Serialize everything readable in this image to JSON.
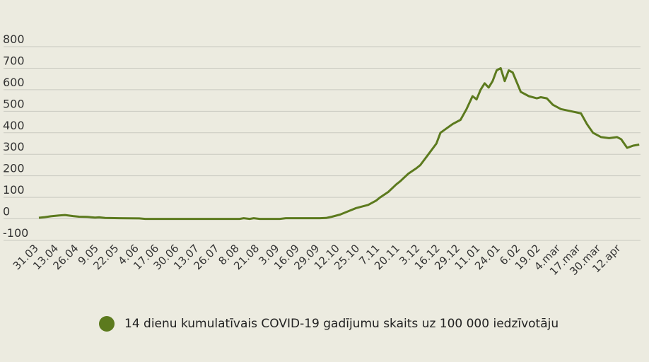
{
  "chart_data": {
    "type": "line",
    "title": "",
    "xlabel": "",
    "ylabel": "",
    "ylim": [
      -100,
      800
    ],
    "yticks": [
      -100,
      0,
      100,
      200,
      300,
      400,
      500,
      600,
      700,
      800
    ],
    "ytick_labels": [
      "-100",
      "0",
      "100",
      "200",
      "300",
      "400",
      "500",
      "600",
      "700",
      "800"
    ],
    "xtick_labels": [
      "31.03",
      "13.04",
      "26.04",
      "9.05",
      "22.05",
      "4.06",
      "17.06",
      "30.06",
      "13.07",
      "26.07",
      "8.08",
      "21.08",
      "3.09",
      "16.09",
      "29.09",
      "12.10",
      "25.10",
      "7.11",
      "20.11",
      "3.12",
      "16.12",
      "29.12",
      "11.01",
      "24.01",
      "6.02",
      "19.02",
      "4.mar",
      "17.mar",
      "30.mar",
      "12.apr"
    ],
    "grid": true,
    "legend_position": "bottom",
    "series": [
      {
        "name": "14 dienu kumulatīvais COVID-19 gadījumu skaits uz 100 000 iedzīvotāju",
        "color": "#5c7a1e",
        "points": [
          [
            0,
            5
          ],
          [
            0.3,
            8
          ],
          [
            0.6,
            12
          ],
          [
            1,
            16
          ],
          [
            1.3,
            18
          ],
          [
            1.7,
            13
          ],
          [
            2,
            10
          ],
          [
            2.4,
            9
          ],
          [
            2.8,
            6
          ],
          [
            3,
            7
          ],
          [
            3.3,
            4
          ],
          [
            4,
            3
          ],
          [
            5,
            2
          ],
          [
            5.3,
            0
          ],
          [
            6,
            0
          ],
          [
            7,
            0
          ],
          [
            8,
            0
          ],
          [
            9,
            0
          ],
          [
            10,
            0
          ],
          [
            10.2,
            3
          ],
          [
            10.5,
            0
          ],
          [
            10.7,
            3
          ],
          [
            11,
            0
          ],
          [
            12,
            0
          ],
          [
            12.3,
            3
          ],
          [
            13,
            3
          ],
          [
            14,
            3
          ],
          [
            14.3,
            4
          ],
          [
            14.6,
            10
          ],
          [
            15,
            20
          ],
          [
            15.4,
            35
          ],
          [
            15.8,
            50
          ],
          [
            16,
            55
          ],
          [
            16.4,
            65
          ],
          [
            16.8,
            85
          ],
          [
            17,
            100
          ],
          [
            17.4,
            125
          ],
          [
            17.8,
            160
          ],
          [
            18,
            175
          ],
          [
            18.4,
            210
          ],
          [
            18.8,
            235
          ],
          [
            19,
            250
          ],
          [
            19.4,
            300
          ],
          [
            19.8,
            350
          ],
          [
            20,
            400
          ],
          [
            20.3,
            420
          ],
          [
            20.6,
            440
          ],
          [
            21,
            460
          ],
          [
            21.3,
            510
          ],
          [
            21.6,
            570
          ],
          [
            21.8,
            555
          ],
          [
            22,
            600
          ],
          [
            22.2,
            630
          ],
          [
            22.4,
            610
          ],
          [
            22.6,
            640
          ],
          [
            22.8,
            690
          ],
          [
            23,
            700
          ],
          [
            23.2,
            640
          ],
          [
            23.4,
            690
          ],
          [
            23.6,
            680
          ],
          [
            24,
            590
          ],
          [
            24.4,
            570
          ],
          [
            24.8,
            560
          ],
          [
            25,
            565
          ],
          [
            25.3,
            560
          ],
          [
            25.6,
            530
          ],
          [
            26,
            510
          ],
          [
            26.5,
            500
          ],
          [
            27,
            490
          ],
          [
            27.3,
            440
          ],
          [
            27.6,
            400
          ],
          [
            28,
            380
          ],
          [
            28.4,
            375
          ],
          [
            28.8,
            380
          ],
          [
            29,
            370
          ],
          [
            29.3,
            330
          ],
          [
            29.6,
            340
          ],
          [
            29.9,
            345
          ]
        ]
      }
    ]
  }
}
